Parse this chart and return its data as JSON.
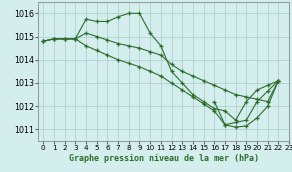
{
  "background_color": "#d4eeed",
  "grid_color": "#aacccc",
  "line_color": "#2d6e2d",
  "marker_color": "#2d6e2d",
  "xlabel": "Graphe pression niveau de la mer (hPa)",
  "xlim": [
    -0.5,
    23
  ],
  "ylim": [
    1010.5,
    1016.5
  ],
  "yticks": [
    1011,
    1012,
    1013,
    1014,
    1015,
    1016
  ],
  "xticks": [
    0,
    1,
    2,
    3,
    4,
    5,
    6,
    7,
    8,
    9,
    10,
    11,
    12,
    13,
    14,
    15,
    16,
    17,
    18,
    19,
    20,
    21,
    22,
    23
  ],
  "series": [
    {
      "x": [
        0,
        1,
        2,
        3,
        4,
        5,
        6,
        7,
        8,
        9,
        10,
        11,
        12,
        13,
        14,
        15,
        16,
        17,
        18,
        19,
        20,
        21,
        22
      ],
      "y": [
        1014.8,
        1014.9,
        1014.9,
        1014.9,
        1015.75,
        1015.65,
        1015.65,
        1015.85,
        1016.0,
        1016.0,
        1015.15,
        1014.6,
        1013.5,
        1013.0,
        1012.5,
        1012.2,
        1011.9,
        1011.8,
        1011.4,
        1012.2,
        1012.7,
        1012.9,
        1013.1
      ]
    },
    {
      "x": [
        0,
        1,
        2,
        3,
        4,
        5,
        6,
        7,
        8,
        9,
        10,
        11,
        12,
        13,
        14,
        15,
        16,
        17,
        18,
        19,
        20,
        21,
        22
      ],
      "y": [
        1014.8,
        1014.9,
        1014.9,
        1014.9,
        1015.15,
        1015.0,
        1014.85,
        1014.7,
        1014.6,
        1014.5,
        1014.35,
        1014.2,
        1013.8,
        1013.5,
        1013.3,
        1013.1,
        1012.9,
        1012.7,
        1012.5,
        1012.4,
        1012.3,
        1012.2,
        1013.1
      ]
    },
    {
      "x": [
        0,
        1,
        2,
        3,
        4,
        5,
        6,
        7,
        8,
        9,
        10,
        11,
        12,
        13,
        14,
        15,
        16,
        17,
        18,
        19,
        20,
        21,
        22
      ],
      "y": [
        1014.8,
        1014.9,
        1014.9,
        1014.9,
        1014.6,
        1014.4,
        1014.2,
        1014.0,
        1013.85,
        1013.7,
        1013.5,
        1013.3,
        1013.0,
        1012.7,
        1012.4,
        1012.1,
        1011.8,
        1011.2,
        1011.1,
        1011.15,
        1011.5,
        1012.0,
        1013.1
      ]
    },
    {
      "x": [
        16,
        17,
        18,
        19,
        20,
        21,
        22
      ],
      "y": [
        1012.2,
        1011.2,
        1011.3,
        1011.4,
        1012.2,
        1012.65,
        1013.1
      ]
    }
  ]
}
